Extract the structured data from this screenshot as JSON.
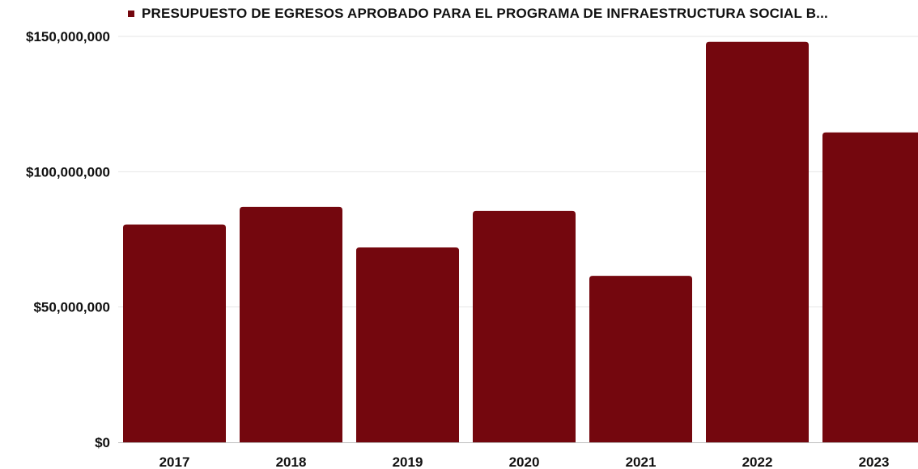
{
  "chart_data": {
    "type": "bar",
    "categories": [
      "2017",
      "2018",
      "2019",
      "2020",
      "2021",
      "2022",
      "2023"
    ],
    "series": [
      {
        "name": "PRESUPUESTO DE EGRESOS APROBADO PARA EL PROGRAMA DE INFRAESTRUCTURA SOCIAL B...",
        "values": [
          80500000,
          87000000,
          72000000,
          85500000,
          61500000,
          148000000,
          114500000
        ]
      }
    ],
    "title": "",
    "xlabel": "",
    "ylabel": "",
    "ylim": [
      0,
      150000000
    ],
    "y_ticks": [
      "$0",
      "$50,000,000",
      "$100,000,000",
      "$150,000,000"
    ],
    "grid": true,
    "legend_position": "top",
    "colors": {
      "bar": "#74070e",
      "grid": "#e6e6e6",
      "axis": "#bdbdbd"
    }
  }
}
